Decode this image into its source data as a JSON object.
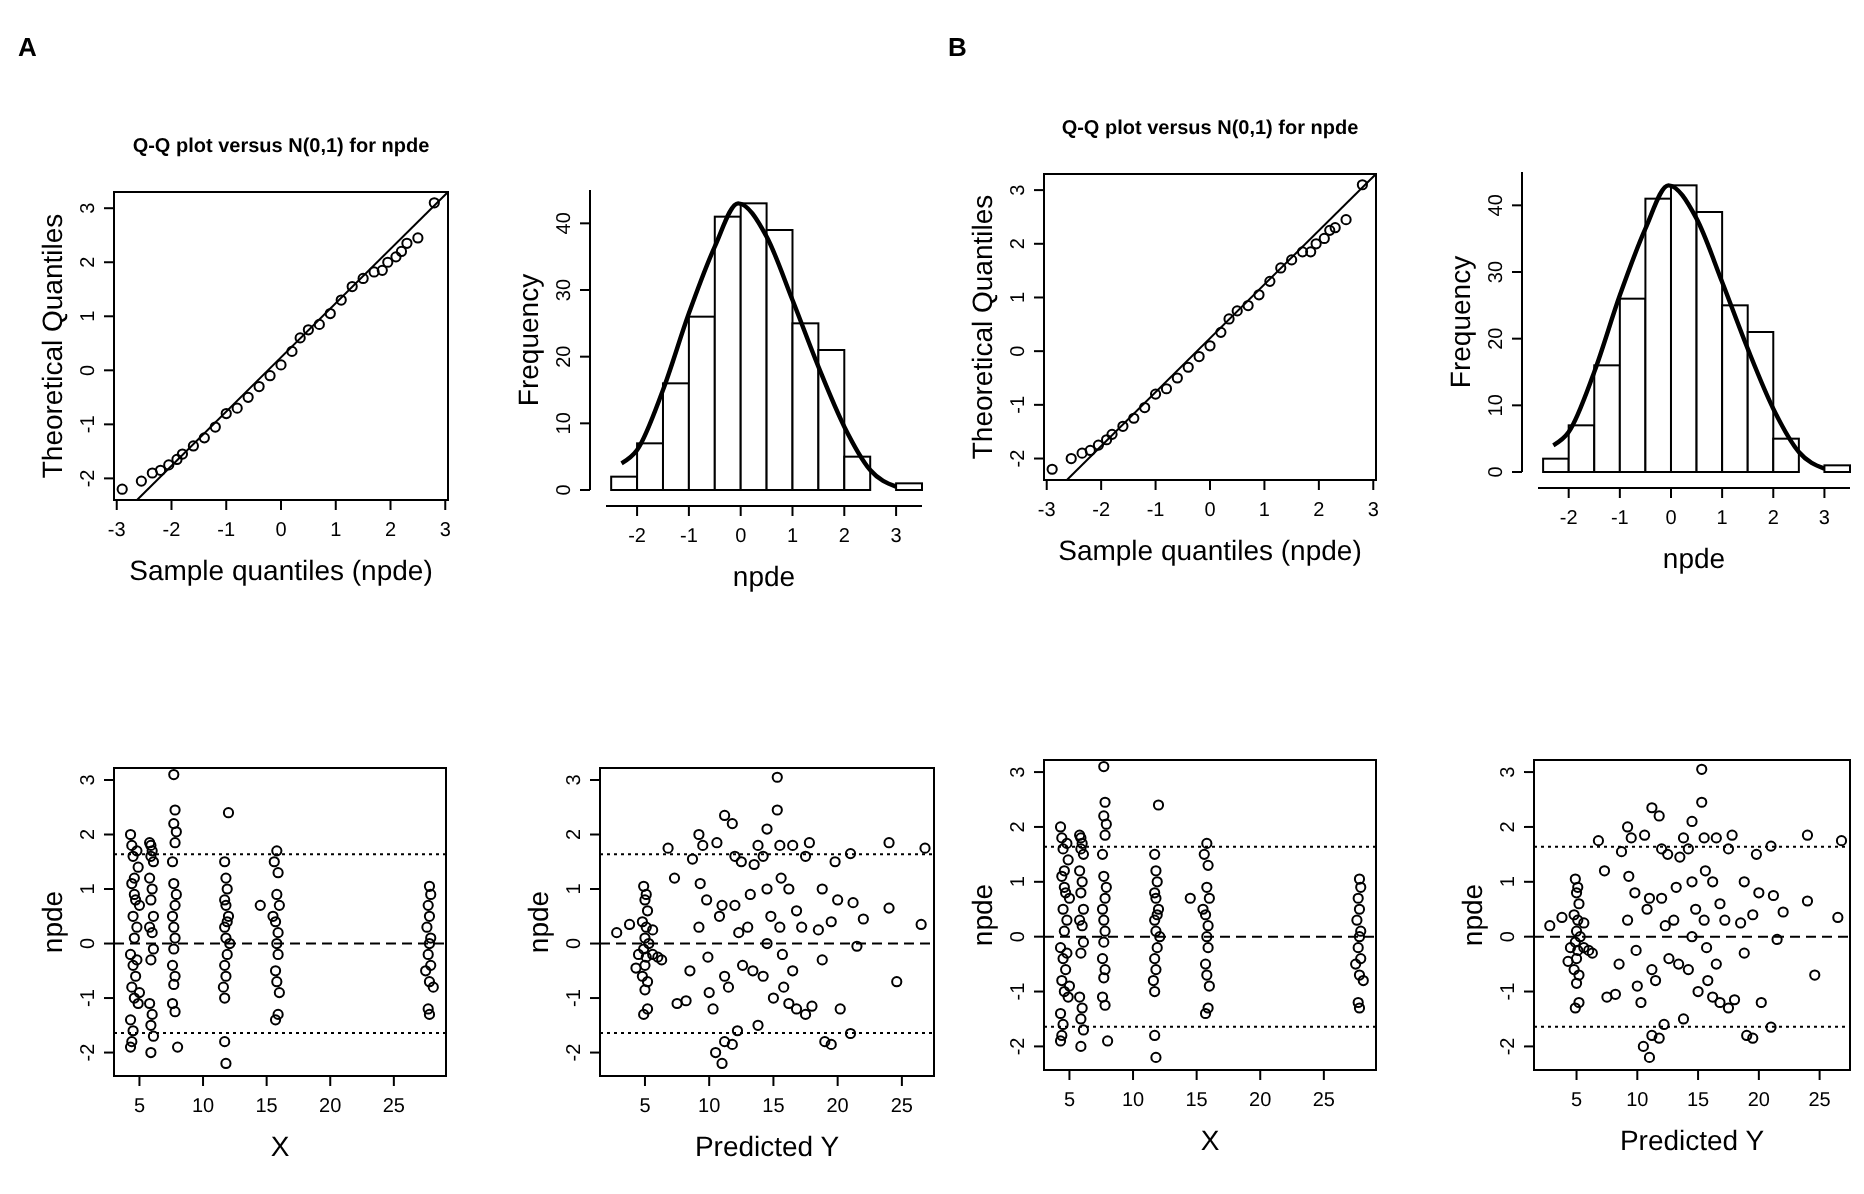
{
  "chart_data": [
    {
      "type": "scatter",
      "title": "Q-Q plot versus N(0,1) for npde",
      "xlabel": "Sample quantiles (npde)",
      "ylabel": "Theoretical Quantiles",
      "annotations": [
        "A"
      ],
      "xlim": [
        -3.05,
        3.05
      ],
      "ylim": [
        -2.4,
        3.3
      ],
      "xticks": [
        -3,
        -2,
        -1,
        0,
        1,
        2,
        3
      ],
      "yticks": [
        -2,
        -1,
        0,
        1,
        2,
        3
      ],
      "series": [
        {
          "type": "scatter",
          "marker": "circle",
          "color": "#000000",
          "x": [
            -2.9,
            -2.55,
            -2.35,
            -2.2,
            -2.05,
            -1.9,
            -1.8,
            -1.6,
            -1.4,
            -1.2,
            -1.0,
            -0.8,
            -0.6,
            -0.4,
            -0.2,
            0,
            0.2,
            0.35,
            0.5,
            0.7,
            0.9,
            1.1,
            1.3,
            1.5,
            1.7,
            1.85,
            1.95,
            2.1,
            2.2,
            2.3,
            2.5,
            2.8
          ],
          "values": [
            -2.2,
            -2.05,
            -1.9,
            -1.85,
            -1.75,
            -1.65,
            -1.55,
            -1.4,
            -1.25,
            -1.05,
            -0.8,
            -0.7,
            -0.5,
            -0.3,
            -0.1,
            0.1,
            0.35,
            0.6,
            0.75,
            0.85,
            1.05,
            1.3,
            1.55,
            1.7,
            1.82,
            1.85,
            2.0,
            2.1,
            2.2,
            2.35,
            2.45,
            3.1
          ]
        },
        {
          "type": "line",
          "color": "#000000",
          "x": [
            -2.63,
            3.05
          ],
          "values": [
            -2.4,
            3.3
          ]
        }
      ]
    },
    {
      "type": "histogram",
      "xlabel": "npde",
      "ylabel": "Frequency",
      "xlim": [
        -2.6,
        3.5
      ],
      "ylim": [
        0,
        45
      ],
      "xticks": [
        -2,
        -1,
        0,
        1,
        2,
        3
      ],
      "yticks": [
        0,
        10,
        20,
        30,
        40
      ],
      "series": [
        {
          "type": "histogram",
          "color": "#ffffff",
          "bins": [
            -2.5,
            -2,
            -1.5,
            -1,
            -0.5,
            0,
            0.5,
            1,
            1.5,
            2,
            2.5,
            3,
            3.5
          ],
          "values": [
            2,
            7,
            16,
            26,
            41,
            43,
            39,
            25,
            21,
            5,
            0,
            1
          ]
        },
        {
          "type": "line",
          "color": "#000000",
          "x": [
            -2.3,
            -2,
            -1.5,
            -1,
            -0.5,
            -0.05,
            0.5,
            1,
            1.5,
            2,
            2.5,
            3
          ],
          "values": [
            4,
            6,
            15,
            26.5,
            36.5,
            43,
            38,
            28.5,
            18.5,
            9.5,
            3,
            0.5
          ]
        }
      ]
    },
    {
      "type": "scatter",
      "title": "Q-Q plot versus N(0,1) for npde",
      "xlabel": "Sample quantiles (npde)",
      "ylabel": "Theoretical Quantiles",
      "annotations": [
        "B"
      ],
      "xlim": [
        -3.05,
        3.05
      ],
      "ylim": [
        -2.4,
        3.3
      ],
      "xticks": [
        -3,
        -2,
        -1,
        0,
        1,
        2,
        3
      ],
      "yticks": [
        -2,
        -1,
        0,
        1,
        2,
        3
      ],
      "series": [
        {
          "type": "scatter",
          "marker": "circle",
          "color": "#000000",
          "x": [
            -2.9,
            -2.55,
            -2.35,
            -2.2,
            -2.05,
            -1.9,
            -1.8,
            -1.6,
            -1.4,
            -1.2,
            -1.0,
            -0.8,
            -0.6,
            -0.4,
            -0.2,
            0,
            0.2,
            0.35,
            0.5,
            0.7,
            0.9,
            1.1,
            1.3,
            1.5,
            1.7,
            1.85,
            1.95,
            2.1,
            2.2,
            2.3,
            2.5,
            2.8
          ],
          "values": [
            -2.2,
            -2.0,
            -1.9,
            -1.85,
            -1.75,
            -1.65,
            -1.55,
            -1.4,
            -1.25,
            -1.05,
            -0.8,
            -0.7,
            -0.5,
            -0.3,
            -0.1,
            0.1,
            0.35,
            0.6,
            0.75,
            0.85,
            1.05,
            1.3,
            1.55,
            1.7,
            1.85,
            1.85,
            2.0,
            2.1,
            2.25,
            2.3,
            2.45,
            3.1
          ]
        },
        {
          "type": "line",
          "color": "#000000",
          "x": [
            -2.63,
            3.05
          ],
          "values": [
            -2.4,
            3.3
          ]
        }
      ]
    },
    {
      "type": "histogram",
      "xlabel": "npde",
      "ylabel": "Frequency",
      "xlim": [
        -2.6,
        3.5
      ],
      "ylim": [
        0,
        45
      ],
      "xticks": [
        -2,
        -1,
        0,
        1,
        2,
        3
      ],
      "yticks": [
        0,
        10,
        20,
        30,
        40
      ],
      "series": [
        {
          "type": "histogram",
          "color": "#ffffff",
          "bins": [
            -2.5,
            -2,
            -1.5,
            -1,
            -0.5,
            0,
            0.5,
            1,
            1.5,
            2,
            2.5,
            3,
            3.5
          ],
          "values": [
            2,
            7,
            16,
            26,
            41,
            43,
            39,
            25,
            21,
            5,
            0,
            1
          ]
        },
        {
          "type": "line",
          "color": "#000000",
          "x": [
            -2.3,
            -2,
            -1.5,
            -1,
            -0.5,
            -0.05,
            0.5,
            1,
            1.5,
            2,
            2.5,
            3
          ],
          "values": [
            4,
            6,
            15,
            26.5,
            36.5,
            43,
            38,
            28.5,
            18.5,
            9.5,
            3,
            0.5
          ]
        }
      ]
    },
    {
      "type": "scatter",
      "xlabel": "X",
      "ylabel": "npde",
      "marker": "circle",
      "xlim": [
        3.0,
        29.1
      ],
      "ylim": [
        -2.43,
        3.22
      ],
      "xticks": [
        5,
        10,
        15,
        20,
        25
      ],
      "yticks": [
        -2,
        -1,
        0,
        1,
        2,
        3
      ],
      "ref_lines": [
        {
          "axis": "y",
          "value": 1.64,
          "line_style": "dotted"
        },
        {
          "axis": "y",
          "value": 0,
          "line_style": "dashed"
        },
        {
          "axis": "y",
          "value": -1.64,
          "line_style": "dotted"
        }
      ],
      "series": [
        {
          "type": "scatter",
          "color": "#000000",
          "x": [
            4.3,
            4.4,
            4.5,
            4.6,
            4.4,
            4.7,
            4.5,
            4.8,
            4.6,
            4.3,
            4.5,
            4.7,
            4.4,
            4.6,
            4.9,
            4.3,
            4.5,
            4.4,
            4.3,
            4.8,
            4.9,
            4.6,
            5.0,
            4.8,
            5.0,
            5.8,
            5.9,
            6.0,
            5.9,
            6.1,
            5.8,
            6.0,
            5.9,
            6.1,
            5.8,
            6.0,
            6.1,
            5.9,
            5.8,
            6.0,
            5.9,
            6.1,
            5.9,
            7.7,
            7.8,
            7.7,
            7.9,
            7.8,
            7.6,
            7.7,
            7.9,
            7.8,
            7.6,
            7.7,
            7.8,
            7.7,
            7.6,
            7.8,
            7.7,
            7.6,
            7.8,
            8.0,
            12.0,
            11.7,
            11.8,
            11.9,
            11.7,
            11.8,
            12.0,
            11.9,
            11.7,
            11.8,
            12.1,
            11.9,
            11.7,
            11.8,
            11.6,
            11.7,
            11.7,
            11.8,
            14.5,
            15.5,
            15.8,
            15.6,
            15.9,
            15.8,
            16.0,
            15.7,
            15.9,
            15.8,
            15.9,
            15.7,
            15.8,
            16.0,
            15.9,
            15.7,
            27.8,
            27.9,
            27.7,
            27.8,
            27.6,
            27.9,
            27.8,
            27.7,
            27.9,
            27.5,
            27.8,
            28.1,
            27.7,
            27.8
          ],
          "values": [
            2.0,
            1.8,
            1.6,
            1.2,
            1.1,
            0.8,
            0.5,
            0.3,
            0.1,
            -0.2,
            -0.4,
            -0.6,
            -0.8,
            -1.0,
            -1.1,
            -1.4,
            -1.6,
            -1.8,
            -1.9,
            1.7,
            1.4,
            0.9,
            0.7,
            -0.3,
            -0.9,
            1.85,
            1.8,
            1.7,
            1.6,
            1.5,
            1.2,
            1.0,
            0.8,
            0.5,
            0.3,
            0.2,
            -0.1,
            -0.3,
            -1.1,
            -1.3,
            -1.5,
            -1.7,
            -2.0,
            3.1,
            2.45,
            2.2,
            2.05,
            1.85,
            1.5,
            1.1,
            0.9,
            0.7,
            0.5,
            0.3,
            0.1,
            -0.1,
            -0.4,
            -0.6,
            -0.75,
            -1.1,
            -1.25,
            -1.9,
            2.4,
            1.5,
            1.2,
            1.0,
            0.8,
            0.7,
            0.5,
            0.4,
            0.3,
            0.1,
            0,
            -0.2,
            -0.4,
            -0.6,
            -0.8,
            -1.0,
            -1.8,
            -2.2,
            0.7,
            0.5,
            1.7,
            1.5,
            1.3,
            0.9,
            0.7,
            0.4,
            0.2,
            0.0,
            -0.2,
            -0.5,
            -0.7,
            -0.9,
            -1.3,
            -1.4,
            1.05,
            0.9,
            0.7,
            0.5,
            0.3,
            0.1,
            0,
            -0.2,
            -0.4,
            -0.5,
            -0.7,
            -0.8,
            -1.2,
            -1.3
          ]
        }
      ]
    },
    {
      "type": "scatter",
      "xlabel": "Predicted Y",
      "ylabel": "npde",
      "marker": "circle",
      "xlim": [
        1.5,
        27.5
      ],
      "ylim": [
        -2.43,
        3.22
      ],
      "xticks": [
        5,
        10,
        15,
        20,
        25
      ],
      "yticks": [
        -2,
        -1,
        0,
        1,
        2,
        3
      ],
      "ref_lines": [
        {
          "axis": "y",
          "value": 1.64,
          "line_style": "dotted"
        },
        {
          "axis": "y",
          "value": 0,
          "line_style": "dashed"
        },
        {
          "axis": "y",
          "value": -1.64,
          "line_style": "dotted"
        }
      ],
      "series": [
        {
          "type": "scatter",
          "color": "#000000",
          "x": [
            2.8,
            3.8,
            6.8,
            7.3,
            7.5,
            8.2,
            8.5,
            8.7,
            9.2,
            9.5,
            9.3,
            9.8,
            9.2,
            9.9,
            10,
            10.3,
            10.6,
            11.2,
            11.8,
            10.8,
            11,
            11.2,
            11.5,
            10.5,
            11.0,
            11.2,
            12,
            12.5,
            12,
            12.3,
            12.6,
            12.2,
            11.8,
            13.5,
            13.8,
            13.2,
            13,
            13.4,
            13.8,
            14.5,
            14.2,
            14.5,
            14.8,
            14.5,
            14.2,
            15,
            15.3,
            15.3,
            15.5,
            15.6,
            15.5,
            15.7,
            15.8,
            16.2,
            16.5,
            16.2,
            16.8,
            16.5,
            16.8,
            17.5,
            17.8,
            17.2,
            17.5,
            18,
            18.5,
            18.8,
            18.8,
            19,
            19.5,
            19.5,
            19.8,
            20,
            20.2,
            21,
            21,
            21.2,
            21.5,
            22,
            24,
            24,
            24.6,
            26.5,
            26.8,
            4.9,
            5.1,
            5.0,
            5.2,
            4.8,
            5.1,
            5.0,
            5.3,
            4.9,
            5.1,
            5.0,
            4.8,
            5.2,
            5.0,
            4.9,
            5.2,
            4.3,
            4.5,
            5.6,
            6.0,
            6.3,
            5.6
          ],
          "values": [
            0.2,
            0.35,
            1.75,
            1.2,
            -1.1,
            -1.05,
            -0.5,
            1.55,
            2.0,
            1.8,
            1.1,
            0.8,
            0.3,
            -0.25,
            -0.9,
            -1.2,
            1.85,
            2.35,
            2.2,
            0.5,
            0.7,
            -0.6,
            -0.8,
            -2.0,
            -2.2,
            -1.8,
            1.6,
            1.5,
            0.7,
            0.2,
            -0.4,
            -1.6,
            -1.85,
            1.45,
            1.8,
            0.9,
            0.3,
            -0.5,
            -1.5,
            2.1,
            1.6,
            1.0,
            0.5,
            0,
            -0.6,
            -1.0,
            3.05,
            2.45,
            1.8,
            1.2,
            0.3,
            -0.2,
            -0.8,
            -1.1,
            1.8,
            1.0,
            0.6,
            -0.5,
            -1.2,
            1.6,
            1.85,
            0.3,
            -1.3,
            -1.15,
            0.25,
            1.0,
            -0.3,
            -1.8,
            -1.85,
            0.4,
            1.5,
            0.8,
            -1.2,
            1.65,
            -1.65,
            0.75,
            -0.05,
            0.45,
            1.85,
            0.65,
            -0.7,
            0.35,
            1.75,
            1.05,
            0.9,
            0.8,
            0.6,
            0.4,
            0.3,
            0.1,
            0,
            -0.1,
            -0.25,
            -0.4,
            -0.6,
            -0.7,
            -0.85,
            -1.3,
            -1.2,
            -0.45,
            -0.2,
            -0.2,
            -0.25,
            -0.3,
            0.25
          ]
        }
      ]
    },
    {
      "type": "scatter",
      "xlabel": "X",
      "ylabel": "npde",
      "marker": "circle",
      "xlim": [
        3.0,
        29.1
      ],
      "ylim": [
        -2.43,
        3.22
      ],
      "xticks": [
        5,
        10,
        15,
        20,
        25
      ],
      "yticks": [
        -2,
        -1,
        0,
        1,
        2,
        3
      ],
      "ref_lines": [
        {
          "axis": "y",
          "value": 1.64,
          "line_style": "dotted"
        },
        {
          "axis": "y",
          "value": 0,
          "line_style": "dashed"
        },
        {
          "axis": "y",
          "value": -1.64,
          "line_style": "dotted"
        }
      ],
      "series": [
        {
          "type": "scatter",
          "color": "#000000",
          "x": [
            4.3,
            4.4,
            4.5,
            4.6,
            4.4,
            4.7,
            4.5,
            4.8,
            4.6,
            4.3,
            4.5,
            4.7,
            4.4,
            4.6,
            4.9,
            4.3,
            4.5,
            4.4,
            4.3,
            4.8,
            4.9,
            4.6,
            5.0,
            4.8,
            5.0,
            5.8,
            5.9,
            6.0,
            5.9,
            6.1,
            5.8,
            6.0,
            5.9,
            6.1,
            5.8,
            6.0,
            6.1,
            5.9,
            5.8,
            6.0,
            5.9,
            6.1,
            5.9,
            7.7,
            7.8,
            7.7,
            7.9,
            7.8,
            7.6,
            7.7,
            7.9,
            7.8,
            7.6,
            7.7,
            7.8,
            7.7,
            7.6,
            7.8,
            7.7,
            7.6,
            7.8,
            8.0,
            12.0,
            11.7,
            11.8,
            11.9,
            11.7,
            11.8,
            12.0,
            11.9,
            11.7,
            11.8,
            12.1,
            11.9,
            11.7,
            11.8,
            11.6,
            11.7,
            11.7,
            11.8,
            14.5,
            15.5,
            15.8,
            15.6,
            15.9,
            15.8,
            16.0,
            15.7,
            15.9,
            15.8,
            15.9,
            15.7,
            15.8,
            16.0,
            15.9,
            15.7,
            27.8,
            27.9,
            27.7,
            27.8,
            27.6,
            27.9,
            27.8,
            27.7,
            27.9,
            27.5,
            27.8,
            28.1,
            27.7,
            27.8
          ],
          "values": [
            2.0,
            1.8,
            1.6,
            1.2,
            1.1,
            0.8,
            0.5,
            0.3,
            0.1,
            -0.2,
            -0.4,
            -0.6,
            -0.8,
            -1.0,
            -1.1,
            -1.4,
            -1.6,
            -1.8,
            -1.9,
            1.7,
            1.4,
            0.9,
            0.7,
            -0.3,
            -0.9,
            1.85,
            1.8,
            1.7,
            1.6,
            1.5,
            1.2,
            1.0,
            0.8,
            0.5,
            0.3,
            0.2,
            -0.1,
            -0.3,
            -1.1,
            -1.3,
            -1.5,
            -1.7,
            -2.0,
            3.1,
            2.45,
            2.2,
            2.05,
            1.85,
            1.5,
            1.1,
            0.9,
            0.7,
            0.5,
            0.3,
            0.1,
            -0.1,
            -0.4,
            -0.6,
            -0.75,
            -1.1,
            -1.25,
            -1.9,
            2.4,
            1.5,
            1.2,
            1.0,
            0.8,
            0.7,
            0.5,
            0.4,
            0.3,
            0.1,
            0,
            -0.2,
            -0.4,
            -0.6,
            -0.8,
            -1.0,
            -1.8,
            -2.2,
            0.7,
            0.5,
            1.7,
            1.5,
            1.3,
            0.9,
            0.7,
            0.4,
            0.2,
            0.0,
            -0.2,
            -0.5,
            -0.7,
            -0.9,
            -1.3,
            -1.4,
            1.05,
            0.9,
            0.7,
            0.5,
            0.3,
            0.1,
            0,
            -0.2,
            -0.4,
            -0.5,
            -0.7,
            -0.8,
            -1.2,
            -1.3
          ]
        }
      ]
    },
    {
      "type": "scatter",
      "xlabel": "Predicted Y",
      "ylabel": "npde",
      "marker": "circle",
      "xlim": [
        1.5,
        27.5
      ],
      "ylim": [
        -2.43,
        3.22
      ],
      "xticks": [
        5,
        10,
        15,
        20,
        25
      ],
      "yticks": [
        -2,
        -1,
        0,
        1,
        2,
        3
      ],
      "ref_lines": [
        {
          "axis": "y",
          "value": 1.64,
          "line_style": "dotted"
        },
        {
          "axis": "y",
          "value": 0,
          "line_style": "dashed"
        },
        {
          "axis": "y",
          "value": -1.64,
          "line_style": "dotted"
        }
      ],
      "series": [
        {
          "type": "scatter",
          "color": "#000000",
          "x": [
            2.8,
            3.8,
            6.8,
            7.3,
            7.5,
            8.2,
            8.5,
            8.7,
            9.2,
            9.5,
            9.3,
            9.8,
            9.2,
            9.9,
            10,
            10.3,
            10.6,
            11.2,
            11.8,
            10.8,
            11,
            11.2,
            11.5,
            10.5,
            11.0,
            11.2,
            12,
            12.5,
            12,
            12.3,
            12.6,
            12.2,
            11.8,
            13.5,
            13.8,
            13.2,
            13,
            13.4,
            13.8,
            14.5,
            14.2,
            14.5,
            14.8,
            14.5,
            14.2,
            15,
            15.3,
            15.3,
            15.5,
            15.6,
            15.5,
            15.7,
            15.8,
            16.2,
            16.5,
            16.2,
            16.8,
            16.5,
            16.8,
            17.5,
            17.8,
            17.2,
            17.5,
            18,
            18.5,
            18.8,
            18.8,
            19,
            19.5,
            19.5,
            19.8,
            20,
            20.2,
            21,
            21,
            21.2,
            21.5,
            22,
            24,
            24,
            24.6,
            26.5,
            26.8,
            4.9,
            5.1,
            5.0,
            5.2,
            4.8,
            5.1,
            5.0,
            5.3,
            4.9,
            5.1,
            5.0,
            4.8,
            5.2,
            5.0,
            4.9,
            5.2,
            4.3,
            4.5,
            5.6,
            6.0,
            6.3,
            5.6
          ],
          "values": [
            0.2,
            0.35,
            1.75,
            1.2,
            -1.1,
            -1.05,
            -0.5,
            1.55,
            2.0,
            1.8,
            1.1,
            0.8,
            0.3,
            -0.25,
            -0.9,
            -1.2,
            1.85,
            2.35,
            2.2,
            0.5,
            0.7,
            -0.6,
            -0.8,
            -2.0,
            -2.2,
            -1.8,
            1.6,
            1.5,
            0.7,
            0.2,
            -0.4,
            -1.6,
            -1.85,
            1.45,
            1.8,
            0.9,
            0.3,
            -0.5,
            -1.5,
            2.1,
            1.6,
            1.0,
            0.5,
            0,
            -0.6,
            -1.0,
            3.05,
            2.45,
            1.8,
            1.2,
            0.3,
            -0.2,
            -0.8,
            -1.1,
            1.8,
            1.0,
            0.6,
            -0.5,
            -1.2,
            1.6,
            1.85,
            0.3,
            -1.3,
            -1.15,
            0.25,
            1.0,
            -0.3,
            -1.8,
            -1.85,
            0.4,
            1.5,
            0.8,
            -1.2,
            1.65,
            -1.65,
            0.75,
            -0.05,
            0.45,
            1.85,
            0.65,
            -0.7,
            0.35,
            1.75,
            1.05,
            0.9,
            0.8,
            0.6,
            0.4,
            0.3,
            0.1,
            0,
            -0.1,
            -0.25,
            -0.4,
            -0.6,
            -0.7,
            -0.85,
            -1.3,
            -1.2,
            -0.45,
            -0.2,
            -0.2,
            -0.25,
            -0.3,
            0.25
          ]
        }
      ]
    }
  ]
}
